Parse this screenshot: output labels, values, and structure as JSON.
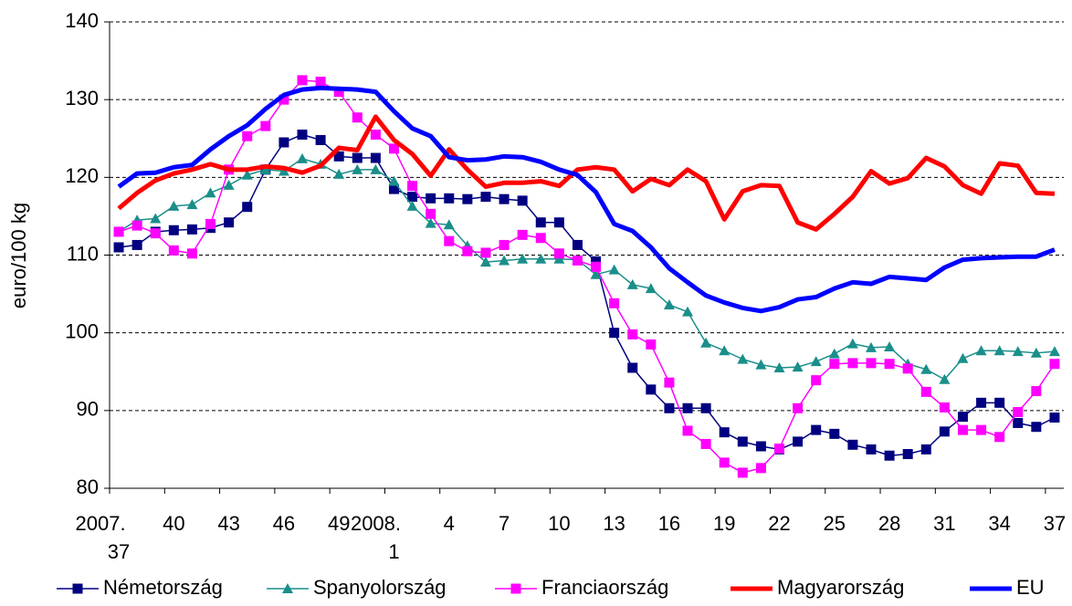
{
  "chart_data": {
    "type": "line",
    "y_label": "euro/100 kg",
    "categories": [
      "2007. 37",
      null,
      null,
      "40",
      null,
      null,
      "43",
      null,
      null,
      "46",
      null,
      null,
      "49",
      null,
      null,
      "2008. 1",
      null,
      null,
      "4",
      null,
      null,
      "7",
      null,
      null,
      "10",
      null,
      null,
      "13",
      null,
      null,
      "16",
      null,
      null,
      "19",
      null,
      null,
      "22",
      null,
      null,
      "25",
      null,
      null,
      "28",
      null,
      null,
      "31",
      null,
      null,
      "34",
      null,
      null,
      "37"
    ],
    "series": [
      {
        "name": "Németország",
        "color": "#000080",
        "marker": "square",
        "values": [
          111,
          111.3,
          113,
          113.2,
          113.3,
          113.5,
          114.2,
          116.2,
          121,
          124.5,
          125.5,
          124.8,
          122.7,
          122.5,
          122.5,
          118.5,
          117.5,
          117.3,
          117.3,
          117.2,
          117.5,
          117.2,
          117,
          114.2,
          114.2,
          111.3,
          109.2,
          100,
          95.5,
          92.7,
          90.3,
          90.3,
          90.3,
          87.2,
          86,
          85.4,
          85,
          86,
          87.5,
          87,
          85.6,
          85,
          84.2,
          84.4,
          85,
          87.3,
          89.2,
          91,
          91,
          88.4,
          87.9,
          89.1
        ]
      },
      {
        "name": "Spanyolország",
        "color": "#1a8f8a",
        "marker": "triangle",
        "values": [
          113,
          114.5,
          114.7,
          116.3,
          116.5,
          118,
          119,
          120.3,
          121,
          120.8,
          122.4,
          121.7,
          120.4,
          121,
          121,
          119.5,
          116.3,
          114.1,
          113.9,
          111.2,
          109.1,
          109.3,
          109.5,
          109.5,
          109.5,
          109.4,
          107.5,
          108.1,
          106.2,
          105.7,
          103.6,
          102.7,
          98.7,
          97.7,
          96.6,
          95.9,
          95.5,
          95.6,
          96.3,
          97.3,
          98.6,
          98.1,
          98.2,
          96,
          95.3,
          94,
          96.7,
          97.7,
          97.7,
          97.6,
          97.4,
          97.6
        ]
      },
      {
        "name": "Franciaország",
        "color": "#ff00ff",
        "marker": "square",
        "values": [
          113,
          113.8,
          112.8,
          110.6,
          110.2,
          114,
          121,
          125.3,
          126.6,
          130,
          132.5,
          132.3,
          131,
          127.7,
          125.5,
          123.7,
          118.9,
          115.3,
          111.8,
          110.5,
          110.3,
          111.3,
          112.6,
          112.2,
          110.2,
          109.3,
          108.5,
          103.8,
          99.8,
          98.5,
          93.6,
          87.4,
          85.7,
          83.3,
          82,
          82.6,
          85.1,
          90.3,
          93.9,
          96,
          96.1,
          96.1,
          96,
          95.4,
          92.4,
          90.4,
          87.5,
          87.5,
          86.6,
          89.8,
          92.5,
          96
        ]
      },
      {
        "name": "Magyarország",
        "color": "#ff0000",
        "values": [
          116,
          118,
          119.6,
          120.5,
          121,
          121.7,
          121,
          121,
          121.4,
          121.2,
          120.6,
          121.5,
          123.8,
          123.5,
          127.8,
          124.8,
          123,
          120.2,
          123.6,
          121,
          118.8,
          119.3,
          119.3,
          119.5,
          118.9,
          121,
          121.3,
          121,
          118.2,
          119.8,
          119,
          121,
          119.5,
          114.6,
          118.2,
          119,
          118.9,
          114.2,
          113.3,
          115.3,
          117.5,
          120.8,
          119.2,
          119.9,
          122.5,
          121.4,
          119,
          117.9,
          121.8,
          121.5,
          118,
          117.9
        ]
      },
      {
        "name": "EU",
        "color": "#0000ff",
        "values": [
          118.8,
          120.5,
          120.6,
          121.3,
          121.6,
          123.6,
          125.3,
          126.7,
          128.8,
          130.6,
          131.3,
          131.5,
          131.4,
          131.3,
          131,
          128.5,
          126.3,
          125.3,
          122.6,
          122.2,
          122.3,
          122.7,
          122.6,
          122,
          121,
          120.3,
          118.1,
          114,
          113.1,
          111,
          108.3,
          106.5,
          104.8,
          103.9,
          103.2,
          102.8,
          103.3,
          104.3,
          104.6,
          105.7,
          106.5,
          106.3,
          107.2,
          107,
          106.8,
          108.4,
          109.4,
          109.6,
          109.7,
          109.8,
          109.8,
          110.7
        ]
      }
    ],
    "ylim": [
      80,
      140
    ],
    "yticks": [
      80,
      90,
      100,
      110,
      120,
      130,
      140
    ],
    "grid": true,
    "legend": "bottom"
  }
}
